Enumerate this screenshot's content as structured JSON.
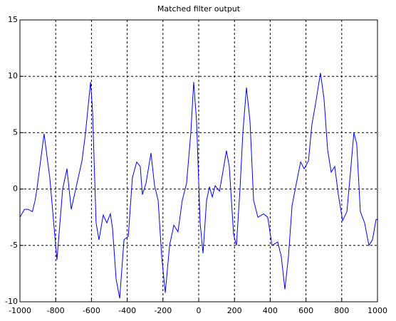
{
  "chart_data": {
    "type": "line",
    "title": "Matched filter output",
    "x": [
      -1000,
      -975,
      -955,
      -930,
      -915,
      -905,
      -865,
      -833,
      -793,
      -761,
      -737,
      -713,
      -681,
      -653,
      -633,
      -605,
      -594,
      -574,
      -558,
      -534,
      -514,
      -494,
      -482,
      -462,
      -442,
      -418,
      -394,
      -371,
      -347,
      -327,
      -315,
      -295,
      -267,
      -247,
      -227,
      -207,
      -187,
      -163,
      -139,
      -116,
      -92,
      -68,
      -44,
      -28,
      -12,
      8,
      24,
      44,
      60,
      76,
      92,
      116,
      135,
      155,
      171,
      195,
      211,
      231,
      247,
      267,
      287,
      307,
      331,
      363,
      386,
      410,
      442,
      462,
      482,
      502,
      522,
      546,
      570,
      590,
      614,
      633,
      653,
      681,
      701,
      721,
      741,
      761,
      781,
      805,
      829,
      849,
      868,
      884,
      904,
      928,
      952,
      972,
      992,
      1000
    ],
    "series": [
      {
        "name": "Matched filter output",
        "color": "#0000ff",
        "values": [
          -2.5,
          -1.8,
          -1.8,
          -2,
          -1,
          0,
          4.9,
          1,
          -6.3,
          0,
          1.8,
          -1.8,
          0.5,
          2.5,
          5,
          9.5,
          7,
          -3,
          -4.5,
          -2.3,
          -3,
          -2.2,
          -3.5,
          -8,
          -9.7,
          -4.5,
          -4.2,
          1,
          2.4,
          2,
          -0.5,
          0.5,
          3.2,
          0.3,
          -1,
          -6,
          -9.2,
          -5,
          -3.2,
          -3.8,
          -1,
          0.5,
          5,
          9.5,
          6,
          -3,
          -5.7,
          -1,
          0.2,
          -0.7,
          0.3,
          -0.2,
          1.5,
          3.4,
          2,
          -4,
          -5,
          0,
          5,
          9,
          6,
          -1,
          -2.5,
          -2.2,
          -2.5,
          -5,
          -4.7,
          -6,
          -8.9,
          -6,
          -1.5,
          0.5,
          2.4,
          1.8,
          2.5,
          5.7,
          7.5,
          10.3,
          8,
          3.5,
          1.5,
          2,
          -0.5,
          -2.8,
          -2,
          1.5,
          5,
          4,
          -2,
          -3,
          -5,
          -4.5,
          -2.7,
          -2.7
        ]
      }
    ],
    "xlim": [
      -1000,
      1000
    ],
    "ylim": [
      -10,
      15
    ],
    "xticks": [
      -1000,
      -800,
      -600,
      -400,
      -200,
      0,
      200,
      400,
      600,
      800,
      1000
    ],
    "yticks": [
      -10,
      -5,
      0,
      5,
      10,
      15
    ],
    "grid": true
  }
}
